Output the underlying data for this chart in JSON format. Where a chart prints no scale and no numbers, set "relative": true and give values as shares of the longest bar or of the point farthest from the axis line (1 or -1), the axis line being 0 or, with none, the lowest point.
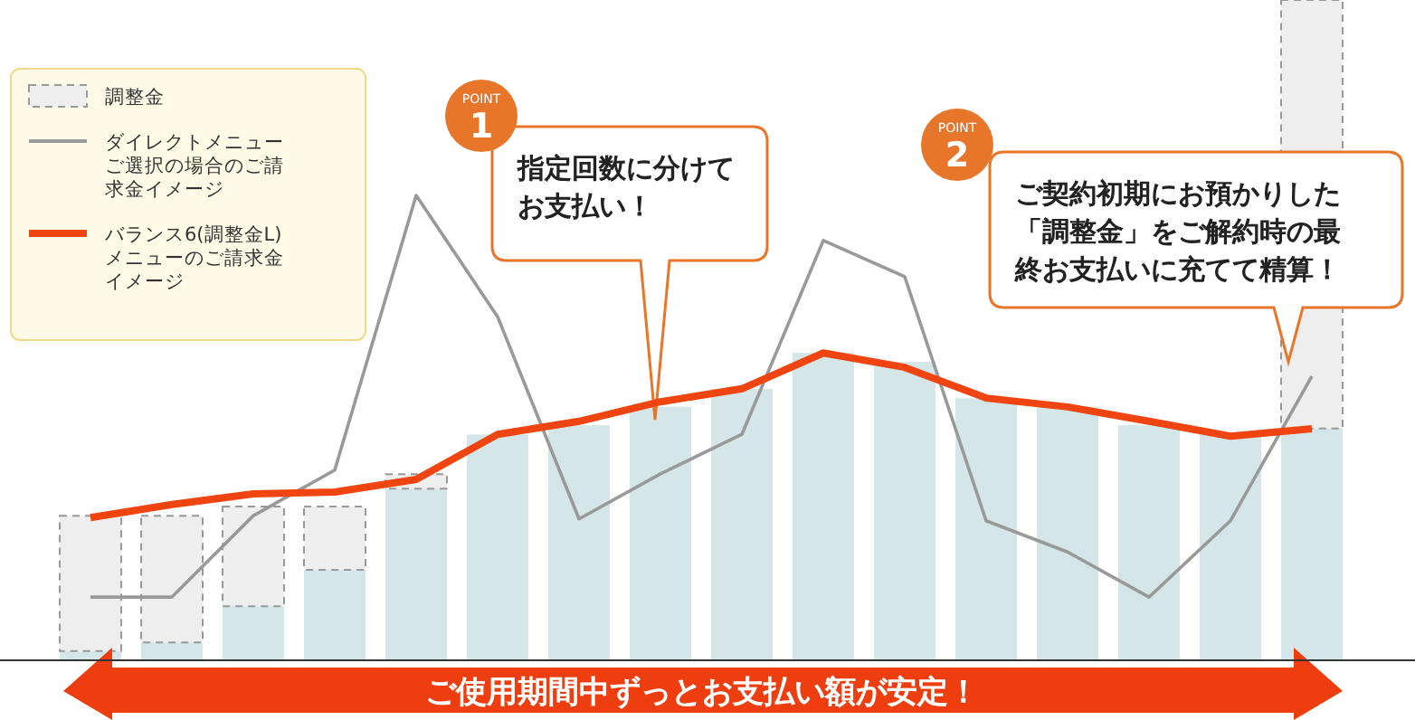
{
  "chart_data": [
    {
      "type": "bar",
      "relative": true,
      "stacked": true,
      "legend": "top left",
      "categories": [
        null,
        null,
        null,
        null,
        null,
        null,
        null,
        null,
        null,
        null,
        null,
        null,
        null,
        null,
        null,
        null
      ],
      "series": [
        {
          "color": "#d5e6e8",
          "values": [
            0.014,
            0.027,
            0.082,
            0.137,
            0.26,
            0.342,
            0.356,
            0.384,
            0.411,
            0.466,
            0.452,
            0.397,
            0.384,
            0.356,
            0.342,
            0.351
          ]
        },
        {
          "name": "調整金",
          "color": "#eeeeee",
          "values": [
            0.205,
            0.192,
            0.151,
            0.096,
            0.022,
            0,
            0,
            0,
            0,
            0,
            0,
            0,
            0,
            0,
            0,
            0.649
          ]
        }
      ],
      "annotations": [
        "POINT",
        "1",
        "指定回数に分けてお支払い！",
        "POINT",
        "2",
        "ご契約初期にお預かりした「調整金」をご解約時の最終お支払いに充てて精算！",
        "ご使用期間中ずっとお支払い額が安定！"
      ]
    },
    {
      "type": "line",
      "relative": true,
      "legend": "top left",
      "categories": [
        null,
        null,
        null,
        null,
        null,
        null,
        null,
        null,
        null,
        null,
        null,
        null,
        null,
        null,
        null,
        null
      ],
      "series": [
        {
          "name": "ダイレクトメニューご選択の場合のご請求金イメージ",
          "color": "#999999",
          "values": [
            0.136,
            0.136,
            0.311,
            0.409,
            1,
            0.739,
            0.304,
            0.401,
            0.486,
            0.903,
            0.825,
            0.3,
            0.233,
            0.136,
            0.3,
            0.611
          ]
        },
        {
          "name": "バランス6(調整金L)メニューのご請求金イメージ",
          "color": "#f04510",
          "values": [
            0.307,
            0.335,
            0.358,
            0.362,
            0.389,
            0.486,
            0.514,
            0.556,
            0.584,
            0.661,
            0.63,
            0.564,
            0.545,
            0.514,
            0.482,
            0.498
          ]
        }
      ]
    }
  ]
}
